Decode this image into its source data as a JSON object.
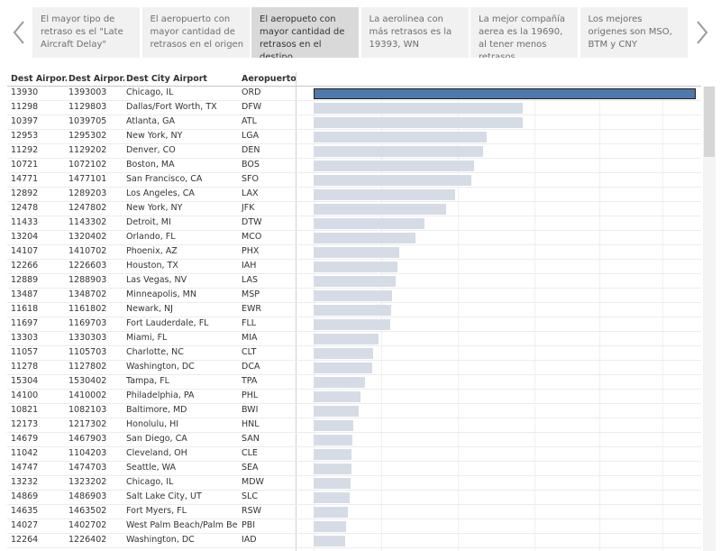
{
  "story": {
    "points": [
      "El mayor tipo de retraso es el \"Late Aircraft Delay\"",
      "El aeropuerto con mayor cantidad de retrasos en el origen",
      "El aeropueto con mayor cantidad de retrasos en el destino",
      "La aerolinea con más retrasos es la 19393, WN",
      "La mejor compañía aerea es la 19690, al tener menos retrasos",
      "Los mejores origenes son MSO, BTM y CNY"
    ],
    "active_index": 2
  },
  "table": {
    "headers": [
      "Dest Airpor..",
      "Dest Airpor..",
      "Dest City Airport",
      "Aeropuerto .."
    ],
    "max_value": 1.0,
    "rows": [
      {
        "id": "13930",
        "seq": "1393003",
        "city": "Chicago, IL",
        "code": "ORD",
        "value": 1.0
      },
      {
        "id": "11298",
        "seq": "1129803",
        "city": "Dallas/Fort Worth, TX",
        "code": "DFW",
        "value": 0.548
      },
      {
        "id": "10397",
        "seq": "1039705",
        "city": "Atlanta, GA",
        "code": "ATL",
        "value": 0.546
      },
      {
        "id": "12953",
        "seq": "1295302",
        "city": "New York, NY",
        "code": "LGA",
        "value": 0.453
      },
      {
        "id": "11292",
        "seq": "1129202",
        "city": "Denver, CO",
        "code": "DEN",
        "value": 0.443
      },
      {
        "id": "10721",
        "seq": "1072102",
        "city": "Boston, MA",
        "code": "BOS",
        "value": 0.42
      },
      {
        "id": "14771",
        "seq": "1477101",
        "city": "San Francisco, CA",
        "code": "SFO",
        "value": 0.413
      },
      {
        "id": "12892",
        "seq": "1289203",
        "city": "Los Angeles, CA",
        "code": "LAX",
        "value": 0.37
      },
      {
        "id": "12478",
        "seq": "1247802",
        "city": "New York, NY",
        "code": "JFK",
        "value": 0.347
      },
      {
        "id": "11433",
        "seq": "1143302",
        "city": "Detroit, MI",
        "code": "DTW",
        "value": 0.29
      },
      {
        "id": "13204",
        "seq": "1320402",
        "city": "Orlando, FL",
        "code": "MCO",
        "value": 0.266
      },
      {
        "id": "14107",
        "seq": "1410702",
        "city": "Phoenix, AZ",
        "code": "PHX",
        "value": 0.224
      },
      {
        "id": "12266",
        "seq": "1226603",
        "city": "Houston, TX",
        "code": "IAH",
        "value": 0.22
      },
      {
        "id": "12889",
        "seq": "1288903",
        "city": "Las Vegas, NV",
        "code": "LAS",
        "value": 0.214
      },
      {
        "id": "13487",
        "seq": "1348702",
        "city": "Minneapolis, MN",
        "code": "MSP",
        "value": 0.205
      },
      {
        "id": "11618",
        "seq": "1161802",
        "city": "Newark, NJ",
        "code": "EWR",
        "value": 0.203
      },
      {
        "id": "11697",
        "seq": "1169703",
        "city": "Fort Lauderdale, FL",
        "code": "FLL",
        "value": 0.2
      },
      {
        "id": "13303",
        "seq": "1330303",
        "city": "Miami, FL",
        "code": "MIA",
        "value": 0.17
      },
      {
        "id": "11057",
        "seq": "1105703",
        "city": "Charlotte, NC",
        "code": "CLT",
        "value": 0.156
      },
      {
        "id": "11278",
        "seq": "1127802",
        "city": "Washington, DC",
        "code": "DCA",
        "value": 0.153
      },
      {
        "id": "15304",
        "seq": "1530402",
        "city": "Tampa, FL",
        "code": "TPA",
        "value": 0.134
      },
      {
        "id": "14100",
        "seq": "1410002",
        "city": "Philadelphia, PA",
        "code": "PHL",
        "value": 0.123
      },
      {
        "id": "10821",
        "seq": "1082103",
        "city": "Baltimore, MD",
        "code": "BWI",
        "value": 0.118
      },
      {
        "id": "12173",
        "seq": "1217302",
        "city": "Honolulu, HI",
        "code": "HNL",
        "value": 0.104
      },
      {
        "id": "14679",
        "seq": "1467903",
        "city": "San Diego, CA",
        "code": "SAN",
        "value": 0.102
      },
      {
        "id": "11042",
        "seq": "1104203",
        "city": "Cleveland, OH",
        "code": "CLE",
        "value": 0.1
      },
      {
        "id": "14747",
        "seq": "1474703",
        "city": "Seattle, WA",
        "code": "SEA",
        "value": 0.098
      },
      {
        "id": "13232",
        "seq": "1323202",
        "city": "Chicago, IL",
        "code": "MDW",
        "value": 0.096
      },
      {
        "id": "14869",
        "seq": "1486903",
        "city": "Salt Lake City, UT",
        "code": "SLC",
        "value": 0.094
      },
      {
        "id": "14635",
        "seq": "1463502",
        "city": "Fort Myers, FL",
        "code": "RSW",
        "value": 0.09
      },
      {
        "id": "14027",
        "seq": "1402702",
        "city": "West Palm Beach/Palm Be..",
        "code": "PBI",
        "value": 0.084
      },
      {
        "id": "12264",
        "seq": "1226402",
        "city": "Washington, DC",
        "code": "IAD",
        "value": 0.082
      }
    ]
  },
  "colors": {
    "bar_selected": "#4f79ac",
    "bar_default": "#d5dce5",
    "active_story_point": "#d9d9d9"
  }
}
